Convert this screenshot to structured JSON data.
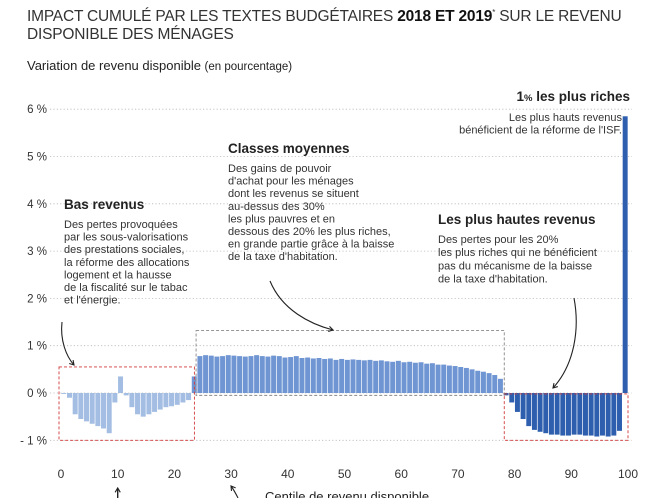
{
  "header": {
    "title_part1": "IMPACT CUMULÉ PAR LES TEXTES BUDGÉTAIRES ",
    "title_bold": "2018 ET 2019",
    "title_sup": "*",
    "title_part2": " SUR LE REVENU DISPONIBLE DES MÉNAGES",
    "ylabel_main": "Variation de revenu disponible ",
    "ylabel_sub": "(en pourcentage)"
  },
  "colors": {
    "light": "#a3bde3",
    "mid": "#6f95d3",
    "dark": "#2e5fae",
    "guide": "#d23b3b",
    "dashed_box": "#888888"
  },
  "chart_data": {
    "type": "bar",
    "title": "IMPACT CUMULÉ PAR LES TEXTES BUDGÉTAIRES 2018 ET 2019* SUR LE REVENU DISPONIBLE DES MÉNAGES",
    "ylabel": "Variation de revenu disponible (en pourcentage)",
    "xlabel": "Centile de revenu disponible",
    "ylim": [
      -1,
      6
    ],
    "xlim": [
      0,
      100
    ],
    "yticks": [
      -1,
      0,
      1,
      2,
      3,
      4,
      5,
      6
    ],
    "ytick_labels": [
      "- 1 %",
      "0 %",
      "1 %",
      "2 %",
      "3 %",
      "4 %",
      "5 %",
      "6 %"
    ],
    "xticks": [
      0,
      10,
      20,
      30,
      40,
      50,
      60,
      70,
      80,
      90,
      100
    ],
    "grid": true,
    "x": [
      1,
      2,
      3,
      4,
      5,
      6,
      7,
      8,
      9,
      10,
      11,
      12,
      13,
      14,
      15,
      16,
      17,
      18,
      19,
      20,
      21,
      22,
      23,
      24,
      25,
      26,
      27,
      28,
      29,
      30,
      31,
      32,
      33,
      34,
      35,
      36,
      37,
      38,
      39,
      40,
      41,
      42,
      43,
      44,
      45,
      46,
      47,
      48,
      49,
      50,
      51,
      52,
      53,
      54,
      55,
      56,
      57,
      58,
      59,
      60,
      61,
      62,
      63,
      64,
      65,
      66,
      67,
      68,
      69,
      70,
      71,
      72,
      73,
      74,
      75,
      76,
      77,
      78,
      79,
      80,
      81,
      82,
      83,
      84,
      85,
      86,
      87,
      88,
      89,
      90,
      91,
      92,
      93,
      94,
      95,
      96,
      97,
      98,
      99,
      100
    ],
    "values": [
      -0.02,
      -0.1,
      -0.45,
      -0.55,
      -0.6,
      -0.65,
      -0.7,
      -0.75,
      -0.85,
      -0.2,
      0.35,
      -0.05,
      -0.3,
      -0.45,
      -0.5,
      -0.45,
      -0.4,
      -0.35,
      -0.3,
      -0.28,
      -0.25,
      -0.2,
      -0.15,
      0.35,
      0.78,
      0.8,
      0.79,
      0.77,
      0.78,
      0.8,
      0.79,
      0.78,
      0.77,
      0.78,
      0.8,
      0.78,
      0.77,
      0.79,
      0.78,
      0.75,
      0.76,
      0.78,
      0.74,
      0.75,
      0.73,
      0.74,
      0.72,
      0.73,
      0.7,
      0.72,
      0.7,
      0.71,
      0.7,
      0.69,
      0.7,
      0.68,
      0.69,
      0.67,
      0.66,
      0.68,
      0.65,
      0.66,
      0.64,
      0.65,
      0.62,
      0.63,
      0.6,
      0.6,
      0.58,
      0.57,
      0.55,
      0.53,
      0.5,
      0.47,
      0.45,
      0.42,
      0.38,
      0.3,
      -0.05,
      -0.2,
      -0.4,
      -0.55,
      -0.7,
      -0.78,
      -0.82,
      -0.85,
      -0.88,
      -0.88,
      -0.9,
      -0.9,
      -0.88,
      -0.88,
      -0.9,
      -0.9,
      -0.92,
      -0.9,
      -0.92,
      -0.9,
      -0.8,
      5.85
    ],
    "segments": [
      {
        "name": "Bas revenus",
        "from": 1,
        "to": 23,
        "color": "light"
      },
      {
        "name": "Classes moyennes",
        "from": 24,
        "to": 78,
        "color": "mid"
      },
      {
        "name": "Les plus hautes revenus",
        "from": 79,
        "to": 99,
        "color": "dark"
      },
      {
        "name": "1% les plus riches",
        "from": 100,
        "to": 100,
        "color": "dark"
      }
    ]
  },
  "annotations": {
    "bas_revenus": {
      "title": "Bas revenus",
      "lines": [
        "Des pertes provoquées",
        "par les sous-valorisations",
        "des prestations sociales,",
        "la réforme des allocations",
        "logement et la hausse",
        "de la fiscalité sur le tabac",
        "et l'énergie."
      ]
    },
    "classes_moyennes": {
      "title": "Classes moyennes",
      "lines": [
        "Des gains de pouvoir",
        "d'achat pour les ménages",
        "dont les revenus se situent",
        "au-dessus des 30%",
        "les plus pauvres et en",
        "dessous des 20% les plus riches,",
        "en grande partie grâce à la baisse",
        "de la taxe d'habitation."
      ]
    },
    "plus_hautes": {
      "title": "Les plus hautes revenus",
      "lines": [
        "Des pertes pour les 20%",
        "les plus riches qui ne bénéficient",
        "pas du mécanisme de la baisse",
        "de la taxe d'habitation."
      ]
    },
    "plus_riches": {
      "title_big": "1",
      "title_small": "%",
      "title_rest": " les plus riches",
      "lines": [
        "Les plus hauts revenus",
        "bénéficient de la réforme de l'ISF."
      ]
    },
    "xaxis_title": "Centile de revenu disponible"
  }
}
